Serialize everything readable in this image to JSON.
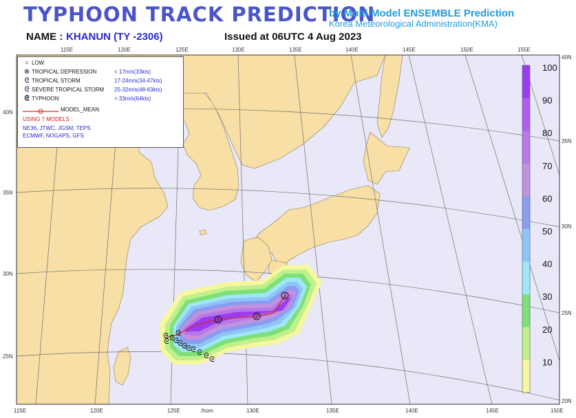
{
  "header": {
    "title": "TYPHOON TRACK PREDICTION",
    "subtitle1": "by Multi Model ENSEMBLE Prediction",
    "subtitle2": "Korea Meteorological Administration(KMA)",
    "name_label": "NAME :",
    "typhoon_name": "KHANUN (TY -2306)",
    "issued": "Issued at 06UTC  4 Aug 2023"
  },
  "legend": {
    "items": [
      {
        "name": "LOW",
        "speed": "",
        "icon": "low-icon"
      },
      {
        "name": "TROPICAL DEPRESSION",
        "speed": "< 17m/s(33kts)",
        "icon": "tropical-depression-icon"
      },
      {
        "name": "TROPICAL STORM",
        "speed": "17-24m/s(34-47kts)",
        "icon": "tropical-storm-icon"
      },
      {
        "name": "SEVERE TROPICAL STORM",
        "speed": "25-32m/s(48-63kts)",
        "icon": "severe-tropical-storm-icon"
      },
      {
        "name": "TYPHOON",
        "speed": "> 33m/s(64kts)",
        "icon": "typhoon-icon"
      }
    ],
    "model_mean": "MODEL_MEAN",
    "models_head": "USING 7 MODELS :",
    "models_line1": "NE36, JTWC, JGSM, TEPS",
    "models_line2": "ECMWF, NOGAPS, GFS"
  },
  "axes": {
    "top_lon": [
      "115E",
      "120E",
      "125E",
      "130E",
      "135E",
      "140E",
      "145E",
      "150E",
      "155E"
    ],
    "bottom_lon": [
      "115E",
      "120E",
      "125E",
      "/hom",
      "130E",
      "135E",
      "140E",
      "145E",
      "150E"
    ],
    "left_lat": [
      "40N",
      "35N",
      "30N",
      "25N"
    ],
    "right_lat": [
      "40N",
      "35N",
      "30N",
      "25N",
      "20N"
    ]
  },
  "colorbar": {
    "labels": [
      "100",
      "90",
      "80",
      "70",
      "60",
      "50",
      "40",
      "30",
      "20",
      "10"
    ],
    "colors": [
      "#9b3cf0",
      "#b05cf0",
      "#b878e8",
      "#c292de",
      "#8a9cf0",
      "#8fc4f8",
      "#9fe6f6",
      "#7ee079",
      "#bff08c",
      "#f7f79f"
    ]
  },
  "track": {
    "day_labels": [
      "1",
      "2",
      "3"
    ],
    "line_color": "#d42a2a"
  },
  "colors": {
    "sea": "#e8e8f8",
    "land": "#f7dfa5",
    "title": "#4a55c8",
    "subtitle": "#1e9be0"
  }
}
